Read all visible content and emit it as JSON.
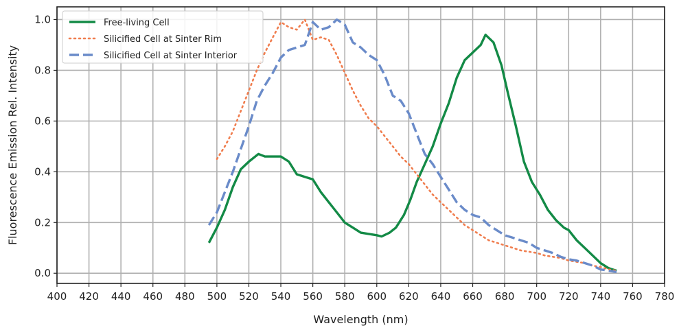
{
  "chart_data": {
    "type": "line",
    "xlabel": "Wavelength (nm)",
    "ylabel": "Fluorescence Emission Rel. Intensity",
    "xlim": [
      400,
      780
    ],
    "ylim": [
      -0.04,
      1.05
    ],
    "xticks": [
      400,
      420,
      440,
      460,
      480,
      500,
      520,
      540,
      560,
      580,
      600,
      620,
      640,
      660,
      680,
      700,
      720,
      740,
      760,
      780
    ],
    "yticks": [
      0.0,
      0.2,
      0.4,
      0.6,
      0.8,
      1.0
    ],
    "ytick_labels": [
      "0.0",
      "0.2",
      "0.4",
      "0.6",
      "0.8",
      "1.0"
    ],
    "grid": true,
    "legend_position": "top-left",
    "series": [
      {
        "name": "Free-living Cell",
        "color": "#138a46",
        "style": "solid",
        "x": [
          495,
          500,
          505,
          510,
          515,
          520,
          526,
          530,
          535,
          540,
          545,
          550,
          555,
          560,
          565,
          570,
          575,
          580,
          585,
          590,
          595,
          600,
          603,
          608,
          612,
          617,
          621,
          625,
          630,
          635,
          640,
          645,
          650,
          655,
          660,
          665,
          668,
          673,
          678,
          682,
          687,
          692,
          697,
          702,
          707,
          712,
          717,
          720,
          725,
          730,
          735,
          740,
          745,
          750
        ],
        "y": [
          0.12,
          0.18,
          0.25,
          0.34,
          0.41,
          0.44,
          0.47,
          0.46,
          0.46,
          0.46,
          0.44,
          0.39,
          0.38,
          0.37,
          0.32,
          0.28,
          0.24,
          0.2,
          0.18,
          0.16,
          0.155,
          0.15,
          0.145,
          0.16,
          0.18,
          0.23,
          0.29,
          0.36,
          0.43,
          0.5,
          0.59,
          0.67,
          0.77,
          0.84,
          0.87,
          0.9,
          0.94,
          0.91,
          0.82,
          0.71,
          0.58,
          0.44,
          0.36,
          0.31,
          0.25,
          0.21,
          0.18,
          0.17,
          0.13,
          0.1,
          0.07,
          0.04,
          0.02,
          0.01
        ]
      },
      {
        "name": "Silicified Cell at Sinter Rim",
        "color": "#f07d4e",
        "style": "dotted",
        "x": [
          500,
          505,
          510,
          515,
          520,
          525,
          530,
          535,
          540,
          545,
          550,
          555,
          560,
          565,
          570,
          575,
          580,
          585,
          590,
          595,
          600,
          605,
          610,
          615,
          620,
          625,
          630,
          635,
          640,
          645,
          650,
          655,
          660,
          665,
          670,
          675,
          680,
          685,
          690,
          695,
          700,
          705,
          710,
          715,
          720,
          725,
          730,
          735,
          740,
          745,
          750
        ],
        "y": [
          0.45,
          0.5,
          0.56,
          0.64,
          0.72,
          0.8,
          0.87,
          0.93,
          0.99,
          0.97,
          0.96,
          1.0,
          0.92,
          0.93,
          0.92,
          0.86,
          0.79,
          0.72,
          0.66,
          0.61,
          0.58,
          0.54,
          0.5,
          0.46,
          0.43,
          0.39,
          0.35,
          0.31,
          0.28,
          0.25,
          0.22,
          0.19,
          0.17,
          0.15,
          0.13,
          0.12,
          0.11,
          0.1,
          0.09,
          0.085,
          0.08,
          0.07,
          0.065,
          0.06,
          0.05,
          0.045,
          0.04,
          0.03,
          0.025,
          0.015,
          0.01
        ]
      },
      {
        "name": "Silicified Cell at Sinter Interior",
        "color": "#6a8bc9",
        "style": "dashed",
        "x": [
          495,
          500,
          505,
          510,
          515,
          520,
          525,
          530,
          535,
          540,
          545,
          550,
          555,
          560,
          565,
          570,
          575,
          580,
          585,
          590,
          595,
          600,
          605,
          610,
          615,
          620,
          625,
          630,
          635,
          640,
          645,
          650,
          655,
          660,
          665,
          670,
          675,
          680,
          685,
          690,
          695,
          700,
          705,
          710,
          715,
          720,
          725,
          730,
          735,
          740,
          745,
          750
        ],
        "y": [
          0.19,
          0.24,
          0.32,
          0.4,
          0.49,
          0.58,
          0.68,
          0.74,
          0.79,
          0.85,
          0.88,
          0.89,
          0.9,
          0.99,
          0.96,
          0.97,
          1.0,
          0.98,
          0.91,
          0.89,
          0.86,
          0.84,
          0.78,
          0.7,
          0.68,
          0.63,
          0.55,
          0.47,
          0.43,
          0.38,
          0.33,
          0.28,
          0.25,
          0.23,
          0.22,
          0.19,
          0.17,
          0.15,
          0.14,
          0.13,
          0.12,
          0.1,
          0.09,
          0.08,
          0.065,
          0.055,
          0.05,
          0.04,
          0.03,
          0.015,
          0.01,
          0.005
        ]
      }
    ]
  }
}
